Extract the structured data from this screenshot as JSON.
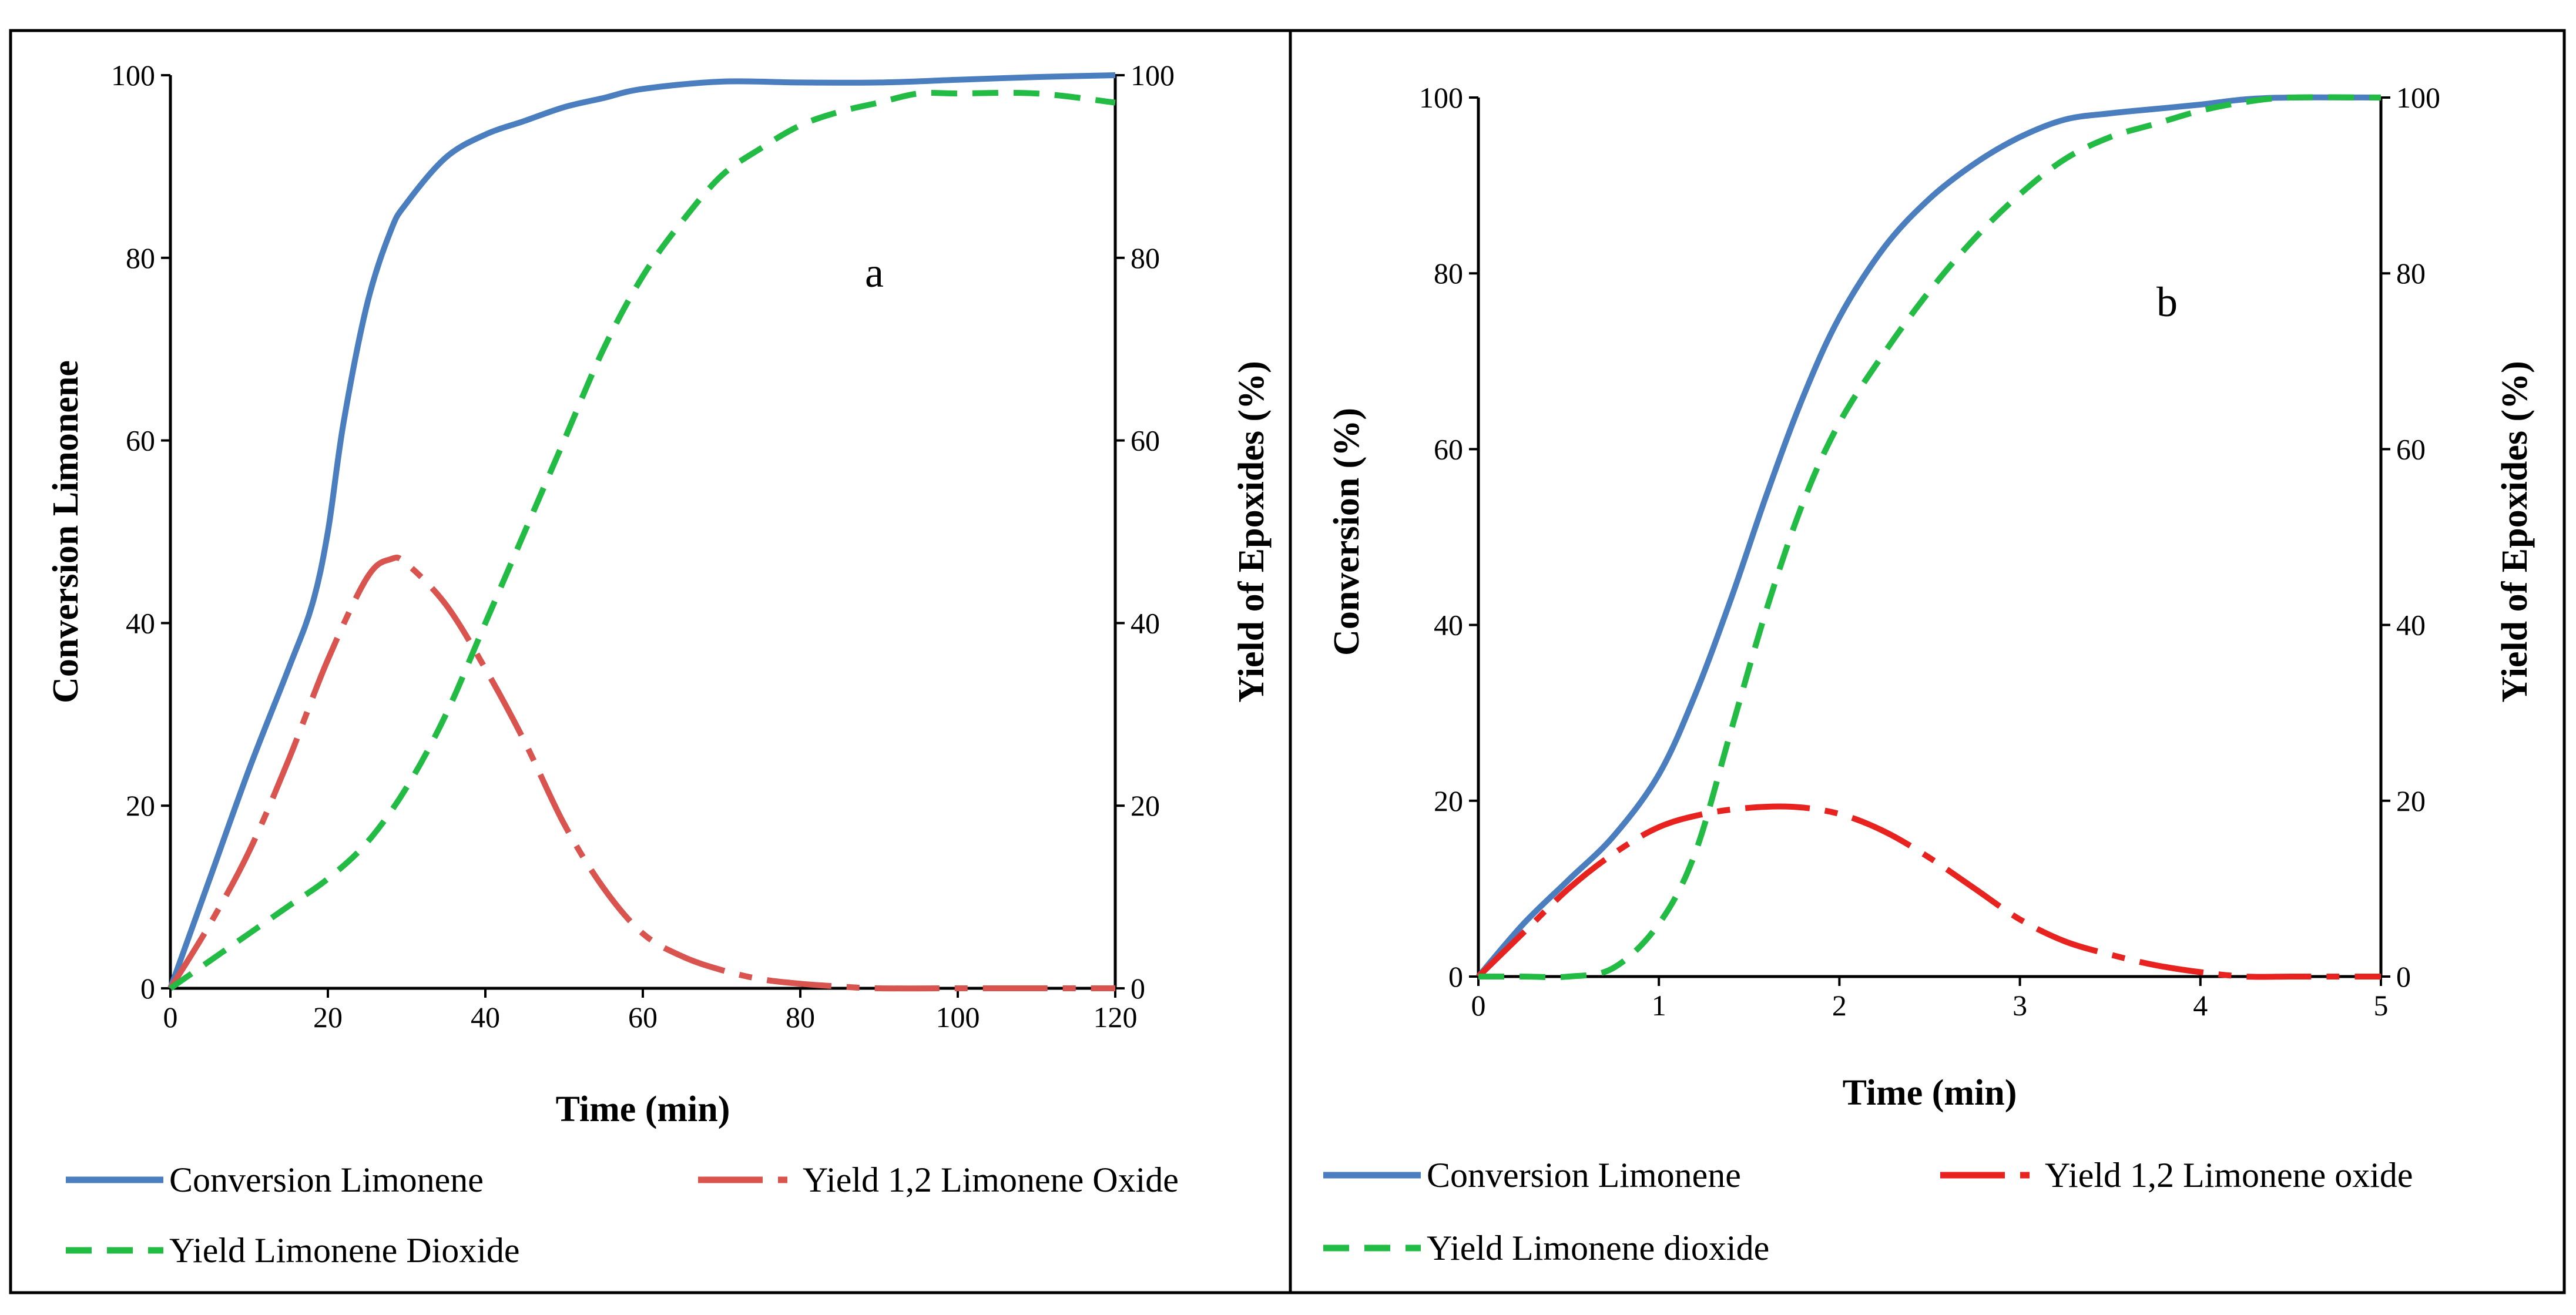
{
  "chart_data": [
    {
      "type": "line",
      "panel_label": "a",
      "xlabel": "Time (min)",
      "ylabel": "Conversion Limonene",
      "y2label": "Yield of Epoxides (%)",
      "xlim": [
        0,
        120
      ],
      "ylim": [
        0,
        100
      ],
      "y2lim": [
        0,
        100
      ],
      "xticks": [
        0,
        20,
        40,
        60,
        80,
        100,
        120
      ],
      "yticks": [
        0,
        20,
        40,
        60,
        80,
        100
      ],
      "grid": false,
      "legend_position": "bottom",
      "series": [
        {
          "name": "Conversion Limonene",
          "color": "#4a7ebf",
          "dash": "solid",
          "axis": "left",
          "x": [
            0,
            5,
            10,
            15,
            18,
            20,
            22,
            25,
            28,
            30,
            35,
            40,
            45,
            50,
            55,
            60,
            70,
            80,
            90,
            100,
            110,
            120
          ],
          "y": [
            0,
            12,
            24,
            35,
            42,
            50,
            62,
            75,
            83,
            86,
            91,
            93.5,
            95,
            96.5,
            97.5,
            98.5,
            99.3,
            99.2,
            99.2,
            99.5,
            99.8,
            100
          ]
        },
        {
          "name": "Yield 1,2 Limonene Oxide",
          "color": "#d9534f",
          "dash": "dashdot",
          "axis": "right",
          "x": [
            0,
            5,
            10,
            15,
            20,
            25,
            28,
            30,
            35,
            40,
            45,
            50,
            55,
            60,
            65,
            70,
            75,
            80,
            85,
            90,
            100,
            110,
            120
          ],
          "y": [
            0,
            7,
            15,
            25,
            36,
            45,
            47,
            46.5,
            42,
            35,
            27,
            18,
            11,
            6,
            3.5,
            2,
            1,
            0.5,
            0.2,
            0,
            0,
            0,
            0
          ]
        },
        {
          "name": "Yield Limonene Dioxide",
          "color": "#22bb44",
          "dash": "dashed",
          "axis": "right",
          "x": [
            0,
            5,
            10,
            15,
            20,
            25,
            30,
            35,
            40,
            45,
            50,
            55,
            60,
            65,
            70,
            75,
            80,
            85,
            90,
            95,
            100,
            110,
            120
          ],
          "y": [
            0,
            3,
            6,
            9,
            12,
            16,
            22,
            30,
            40,
            50,
            60,
            70,
            78,
            84,
            89,
            92,
            94.5,
            96,
            97,
            98,
            98,
            98,
            97
          ]
        }
      ]
    },
    {
      "type": "line",
      "panel_label": "b",
      "xlabel": "Time (min)",
      "ylabel": "Conversion (%)",
      "y2label": "Yield of Epoxides (%)",
      "xlim": [
        0,
        5
      ],
      "ylim": [
        0,
        100
      ],
      "y2lim": [
        0,
        100
      ],
      "xticks": [
        0,
        1,
        2,
        3,
        4,
        5
      ],
      "yticks": [
        0,
        20,
        40,
        60,
        80,
        100
      ],
      "grid": false,
      "legend_position": "bottom",
      "series": [
        {
          "name": "Conversion Limonene",
          "color": "#4a7ebf",
          "dash": "solid",
          "axis": "left",
          "x": [
            0,
            0.25,
            0.5,
            0.75,
            1,
            1.2,
            1.4,
            1.6,
            1.8,
            2,
            2.25,
            2.5,
            2.75,
            3,
            3.25,
            3.5,
            3.75,
            4,
            4.25,
            4.5,
            5
          ],
          "y": [
            0,
            6,
            11,
            16,
            23,
            32,
            43,
            55,
            66,
            75,
            83,
            88.5,
            92.5,
            95.5,
            97.5,
            98.2,
            98.7,
            99.2,
            99.8,
            100,
            100
          ]
        },
        {
          "name": "Yield 1,2 Limonene oxide",
          "color": "#e8231f",
          "dash": "dashdot",
          "axis": "right",
          "x": [
            0,
            0.25,
            0.5,
            0.75,
            1,
            1.25,
            1.5,
            1.75,
            2,
            2.25,
            2.5,
            2.75,
            3,
            3.25,
            3.5,
            3.75,
            4,
            4.25,
            4.5,
            4.75,
            5
          ],
          "y": [
            0,
            5,
            10,
            14,
            17,
            18.5,
            19.2,
            19.3,
            18.5,
            16.5,
            13.5,
            10,
            6.5,
            4,
            2.5,
            1.3,
            0.5,
            0,
            0,
            0,
            0
          ]
        },
        {
          "name": "Yield Limonene dioxide",
          "color": "#22bb44",
          "dash": "dashed",
          "axis": "right",
          "x": [
            0,
            0.25,
            0.5,
            0.75,
            1,
            1.2,
            1.4,
            1.6,
            1.8,
            2,
            2.25,
            2.5,
            2.75,
            3,
            3.25,
            3.5,
            3.75,
            4,
            4.25,
            4.5,
            5
          ],
          "y": [
            0,
            0,
            0,
            1,
            6,
            14,
            28,
            42,
            54,
            63,
            71,
            78,
            84,
            89,
            93,
            95.5,
            97,
            98.5,
            99.5,
            100,
            100
          ]
        }
      ]
    }
  ]
}
